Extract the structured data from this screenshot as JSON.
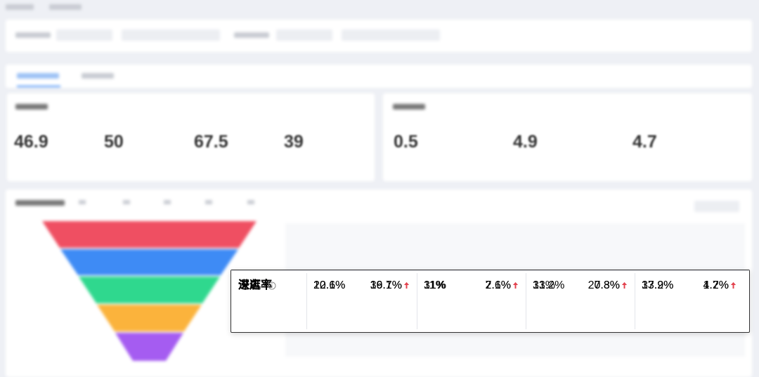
{
  "metric_cards": {
    "left": [
      "46.9",
      "50",
      "67.5",
      "39"
    ],
    "right": [
      "0.5",
      "4.9",
      "4.7"
    ]
  },
  "highlight_table": {
    "rows": [
      {
        "label": "进店率",
        "cells": [
          "12.1%",
          "36.7%",
          "11%",
          "7.6%",
          "13.2%",
          "20.8%",
          "13.9%",
          "1.2%"
        ]
      },
      {
        "label": "深逛率",
        "cells": [
          "20.6%",
          "19.1%",
          "31%",
          "2.1%",
          "31%",
          "7.3%",
          "37.2%",
          "4.7%"
        ]
      }
    ]
  }
}
